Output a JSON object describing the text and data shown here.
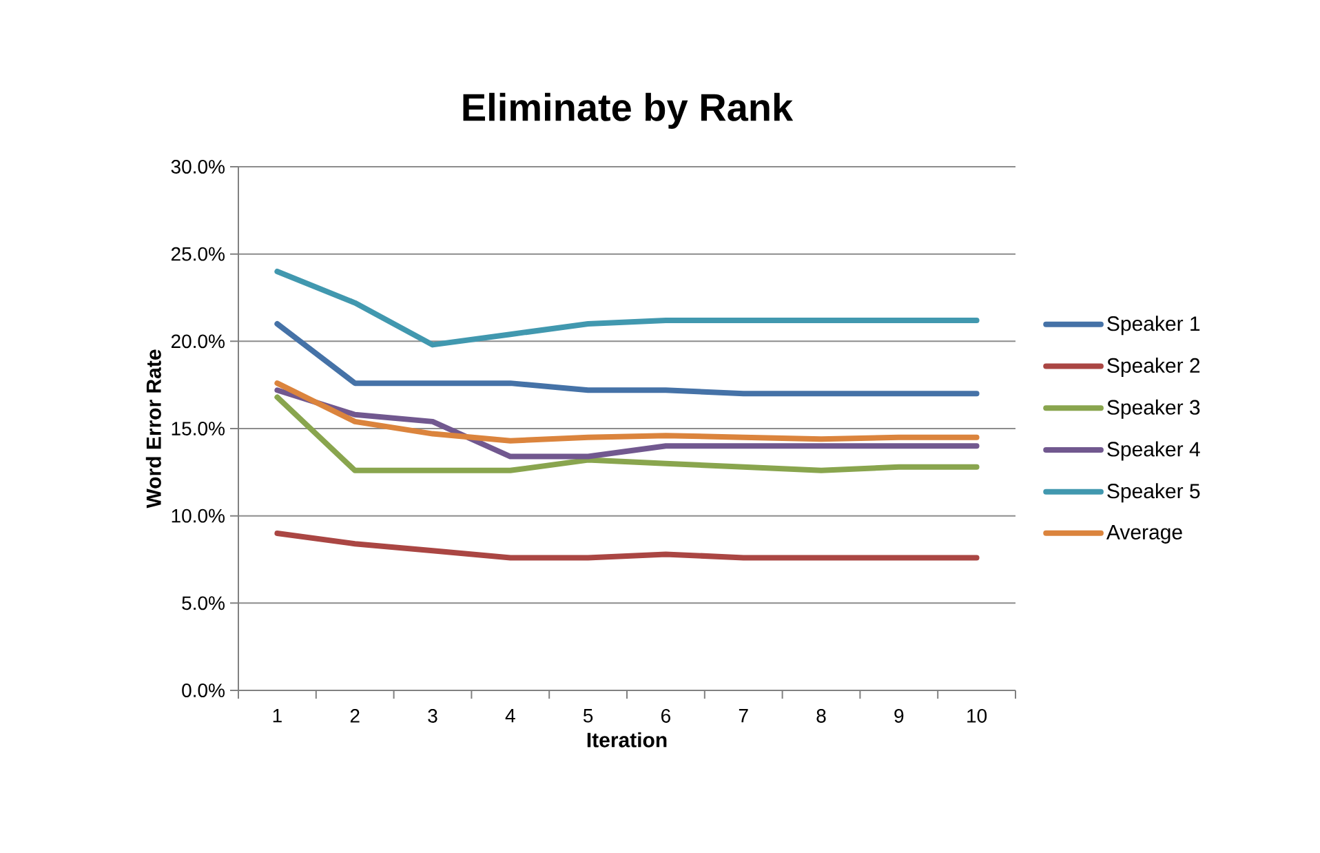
{
  "chart_data": {
    "type": "line",
    "title": "Eliminate by Rank",
    "xlabel": "Iteration",
    "ylabel": "Word Error Rate",
    "categories": [
      "1",
      "2",
      "3",
      "4",
      "5",
      "6",
      "7",
      "8",
      "9",
      "10"
    ],
    "series": [
      {
        "name": "Speaker 1",
        "color": "#4572a7",
        "values": [
          21.0,
          17.6,
          17.6,
          17.6,
          17.2,
          17.2,
          17.0,
          17.0,
          17.0,
          17.0
        ]
      },
      {
        "name": "Speaker 2",
        "color": "#aa4643",
        "values": [
          9.0,
          8.4,
          8.0,
          7.6,
          7.6,
          7.8,
          7.6,
          7.6,
          7.6,
          7.6
        ]
      },
      {
        "name": "Speaker 3",
        "color": "#89a54e",
        "values": [
          16.8,
          12.6,
          12.6,
          12.6,
          13.2,
          13.0,
          12.8,
          12.6,
          12.8,
          12.8
        ]
      },
      {
        "name": "Speaker 4",
        "color": "#71588f",
        "values": [
          17.2,
          15.8,
          15.4,
          13.4,
          13.4,
          14.0,
          14.0,
          14.0,
          14.0,
          14.0
        ]
      },
      {
        "name": "Speaker 5",
        "color": "#4198af",
        "values": [
          24.0,
          22.2,
          19.8,
          20.4,
          21.0,
          21.2,
          21.2,
          21.2,
          21.2,
          21.2
        ]
      },
      {
        "name": "Average",
        "color": "#db843d",
        "values": [
          17.6,
          15.4,
          14.7,
          14.3,
          14.5,
          14.6,
          14.5,
          14.4,
          14.5,
          14.5
        ]
      }
    ],
    "ylim": [
      0,
      30
    ],
    "yticks": [
      {
        "value": 0,
        "label": "0.0%"
      },
      {
        "value": 5,
        "label": "5.0%"
      },
      {
        "value": 10,
        "label": "10.0%"
      },
      {
        "value": 15,
        "label": "15.0%"
      },
      {
        "value": 20,
        "label": "20.0%"
      },
      {
        "value": 25,
        "label": "25.0%"
      },
      {
        "value": 30,
        "label": "30.0%"
      }
    ],
    "grid": "y",
    "legend": "right",
    "marker": "none",
    "line_style": "solid"
  }
}
